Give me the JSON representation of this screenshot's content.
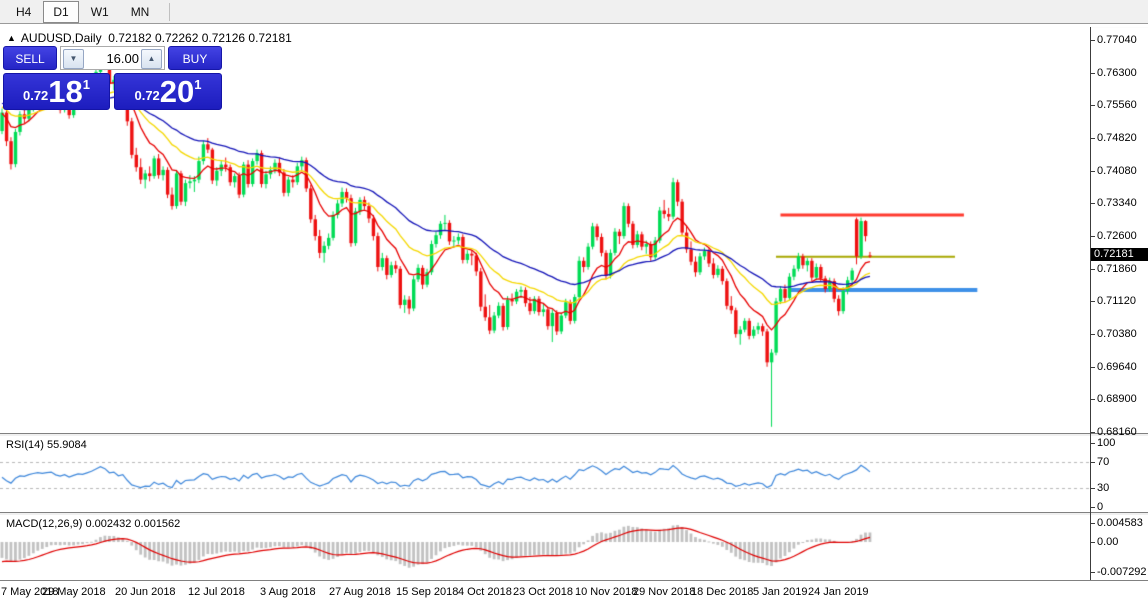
{
  "timeframe_tabs": [
    {
      "label": "H4",
      "active": false
    },
    {
      "label": "D1",
      "active": true
    },
    {
      "label": "W1",
      "active": false
    },
    {
      "label": "MN",
      "active": false
    }
  ],
  "header": {
    "arrow": "▲",
    "symbol_label": "AUDUSD,Daily",
    "ohlc": "0.72182 0.72262 0.72126 0.72181"
  },
  "one_click": {
    "sell_label": "SELL",
    "buy_label": "BUY",
    "volume": "16.00",
    "spin_down": "▼",
    "spin_up": "▲",
    "bid": {
      "prefix": "0.72",
      "big": "18",
      "sup": "1"
    },
    "ask": {
      "prefix": "0.72",
      "big": "20",
      "sup": "1"
    }
  },
  "indicators": {
    "rsi": {
      "label": "RSI(14) 55.9084",
      "period": 14,
      "value": "55.9084",
      "color": "#3d87db",
      "level_labels": [
        "100",
        "70",
        "30",
        "0"
      ],
      "level_values": [
        100,
        70,
        30,
        0
      ],
      "dashed_levels": [
        70,
        30
      ],
      "seed_gain": 0.00155,
      "seed_loss": 0.00215
    },
    "macd": {
      "label": "MACD(12,26,9) 0.002432 0.001562",
      "fast": 12,
      "slow": 26,
      "signal": 9,
      "main_value": "0.002432",
      "signal_value": "0.001562",
      "histogram_color": "#c2c2c2",
      "signal_color": "#e00000",
      "scale_labels": [
        "0.004583",
        "0.00",
        "-0.007292"
      ],
      "scale_values": [
        0.004583,
        0.0,
        -0.007292
      ],
      "seed_fast_offset": 0.0018,
      "seed_slow_offset": 0.0058,
      "seed_signal": -0.005
    }
  },
  "chart_data": {
    "type": "candlestick",
    "symbol": "AUDUSD",
    "timeframe": "Daily",
    "title": "AUDUSD,Daily 0.72182 0.72262 0.72126 0.72181",
    "y_axis_labels": [
      "0.77040",
      "0.76300",
      "0.75560",
      "0.74820",
      "0.74080",
      "0.73340",
      "0.72600",
      "0.71860",
      "0.71120",
      "0.70380",
      "0.69640",
      "0.68900",
      "0.68160"
    ],
    "price_tag": "0.72181",
    "ylim": [
      0.6816,
      0.7704
    ],
    "x_labels": [
      {
        "text": "7 May 2018",
        "idx": 0
      },
      {
        "text": "29 May 2018",
        "idx": 16
      },
      {
        "text": "20 Jun 2018",
        "idx": 32
      },
      {
        "text": "12 Jul 2018",
        "idx": 48
      },
      {
        "text": "3 Aug 2018",
        "idx": 64
      },
      {
        "text": "27 Aug 2018",
        "idx": 80
      },
      {
        "text": "15 Sep 2018",
        "idx": 95
      },
      {
        "text": "4 Oct 2018",
        "idx": 108
      },
      {
        "text": "23 Oct 2018",
        "idx": 121
      },
      {
        "text": "10 Nov 2018",
        "idx": 135
      },
      {
        "text": "29 Nov 2018",
        "idx": 148
      },
      {
        "text": "18 Dec 2018",
        "idx": 161
      },
      {
        "text": "5 Jan 2019",
        "idx": 174
      },
      {
        "text": "24 Jan 2019",
        "idx": 187
      }
    ],
    "colors": {
      "bull": "#00dc55",
      "bear": "#ee1111"
    },
    "hlines": [
      {
        "name": "resistance-line",
        "color": "#ff3b30",
        "width": 3,
        "price": 0.731,
        "from": 174,
        "to": 215
      },
      {
        "name": "mid-line",
        "color": "#a8a800",
        "width": 2,
        "price": 0.7215,
        "from": 173,
        "to": 213
      },
      {
        "name": "support-line",
        "color": "#3e90e8",
        "width": 4,
        "price": 0.714,
        "from": 176,
        "to": 218
      }
    ],
    "moving_averages": [
      {
        "name": "fast-ma",
        "color": "#e80000",
        "period": 10,
        "seed": 0.754
      },
      {
        "name": "medium-ma",
        "color": "#f5d800",
        "period": 22,
        "seed": 0.7556
      },
      {
        "name": "slow-ma",
        "color": "#1414b8",
        "period": 42,
        "seed": 0.7564
      }
    ],
    "candles": [
      [
        0.75,
        0.7551,
        0.7493,
        0.7542
      ],
      [
        0.7542,
        0.7549,
        0.7466,
        0.7477
      ],
      [
        0.7477,
        0.7486,
        0.7413,
        0.7425
      ],
      [
        0.7425,
        0.7505,
        0.7418,
        0.7498
      ],
      [
        0.7498,
        0.7545,
        0.749,
        0.7538
      ],
      [
        0.7538,
        0.756,
        0.7518,
        0.7528
      ],
      [
        0.7528,
        0.7566,
        0.7522,
        0.7558
      ],
      [
        0.7558,
        0.7582,
        0.7544,
        0.7576
      ],
      [
        0.7576,
        0.7598,
        0.756,
        0.759
      ],
      [
        0.759,
        0.7606,
        0.7572,
        0.758
      ],
      [
        0.758,
        0.7598,
        0.7568,
        0.7592
      ],
      [
        0.7592,
        0.7606,
        0.758,
        0.76
      ],
      [
        0.76,
        0.7604,
        0.7556,
        0.7565
      ],
      [
        0.7565,
        0.7578,
        0.754,
        0.7548
      ],
      [
        0.7548,
        0.7572,
        0.7542,
        0.7566
      ],
      [
        0.7566,
        0.7574,
        0.7528,
        0.7536
      ],
      [
        0.7536,
        0.7562,
        0.753,
        0.7556
      ],
      [
        0.7556,
        0.758,
        0.7548,
        0.7574
      ],
      [
        0.7574,
        0.759,
        0.756,
        0.7568
      ],
      [
        0.7568,
        0.7592,
        0.756,
        0.7586
      ],
      [
        0.7586,
        0.761,
        0.7578,
        0.7604
      ],
      [
        0.7604,
        0.764,
        0.7596,
        0.7634
      ],
      [
        0.7634,
        0.7677,
        0.7626,
        0.7665
      ],
      [
        0.7665,
        0.7672,
        0.7638,
        0.7648
      ],
      [
        0.7648,
        0.766,
        0.7598,
        0.7608
      ],
      [
        0.7608,
        0.7625,
        0.7592,
        0.7616
      ],
      [
        0.7616,
        0.7622,
        0.757,
        0.7578
      ],
      [
        0.7578,
        0.7598,
        0.7565,
        0.759
      ],
      [
        0.759,
        0.7596,
        0.7512,
        0.7522
      ],
      [
        0.7522,
        0.753,
        0.7438,
        0.7446
      ],
      [
        0.7446,
        0.7462,
        0.7408,
        0.7418
      ],
      [
        0.7418,
        0.7438,
        0.738,
        0.739
      ],
      [
        0.739,
        0.7412,
        0.737,
        0.7404
      ],
      [
        0.7404,
        0.742,
        0.7386,
        0.7398
      ],
      [
        0.7398,
        0.7444,
        0.7392,
        0.7438
      ],
      [
        0.7438,
        0.7448,
        0.7392,
        0.74
      ],
      [
        0.74,
        0.742,
        0.7388,
        0.7412
      ],
      [
        0.7412,
        0.7418,
        0.7348,
        0.7356
      ],
      [
        0.7356,
        0.7372,
        0.7322,
        0.733
      ],
      [
        0.733,
        0.7412,
        0.7324,
        0.7404
      ],
      [
        0.7404,
        0.741,
        0.7332,
        0.734
      ],
      [
        0.734,
        0.739,
        0.733,
        0.7382
      ],
      [
        0.7382,
        0.74,
        0.737,
        0.7386
      ],
      [
        0.7386,
        0.7398,
        0.7362,
        0.739
      ],
      [
        0.739,
        0.7442,
        0.7382,
        0.7432
      ],
      [
        0.7432,
        0.7478,
        0.7424,
        0.747
      ],
      [
        0.747,
        0.7484,
        0.745,
        0.7458
      ],
      [
        0.7458,
        0.7462,
        0.738,
        0.7388
      ],
      [
        0.7388,
        0.7418,
        0.7376,
        0.741
      ],
      [
        0.741,
        0.7432,
        0.7398,
        0.7424
      ],
      [
        0.7424,
        0.744,
        0.7408,
        0.7418
      ],
      [
        0.7418,
        0.7424,
        0.7376,
        0.7384
      ],
      [
        0.7384,
        0.7404,
        0.7372,
        0.7398
      ],
      [
        0.7398,
        0.7406,
        0.7348,
        0.7356
      ],
      [
        0.7356,
        0.743,
        0.735,
        0.7424
      ],
      [
        0.7424,
        0.7434,
        0.7372,
        0.738
      ],
      [
        0.738,
        0.7438,
        0.7374,
        0.7432
      ],
      [
        0.7432,
        0.7458,
        0.7424,
        0.745
      ],
      [
        0.745,
        0.7456,
        0.7372,
        0.738
      ],
      [
        0.738,
        0.741,
        0.737,
        0.7402
      ],
      [
        0.7402,
        0.742,
        0.7392,
        0.7412
      ],
      [
        0.7412,
        0.7436,
        0.7404,
        0.7428
      ],
      [
        0.7428,
        0.744,
        0.7398,
        0.7406
      ],
      [
        0.7406,
        0.7414,
        0.7352,
        0.736
      ],
      [
        0.736,
        0.7396,
        0.7352,
        0.739
      ],
      [
        0.739,
        0.74,
        0.7372,
        0.7384
      ],
      [
        0.7384,
        0.7428,
        0.7378,
        0.742
      ],
      [
        0.742,
        0.7442,
        0.741,
        0.7434
      ],
      [
        0.7434,
        0.744,
        0.7362,
        0.737
      ],
      [
        0.737,
        0.7378,
        0.7292,
        0.73
      ],
      [
        0.73,
        0.731,
        0.7252,
        0.7262
      ],
      [
        0.7262,
        0.7276,
        0.7212,
        0.7224
      ],
      [
        0.7224,
        0.725,
        0.7202,
        0.724
      ],
      [
        0.724,
        0.7268,
        0.7232,
        0.7258
      ],
      [
        0.7258,
        0.7318,
        0.7252,
        0.731
      ],
      [
        0.731,
        0.7344,
        0.7302,
        0.7336
      ],
      [
        0.7336,
        0.7372,
        0.7328,
        0.7362
      ],
      [
        0.7362,
        0.737,
        0.7338,
        0.7348
      ],
      [
        0.7348,
        0.7356,
        0.7238,
        0.7246
      ],
      [
        0.7246,
        0.7326,
        0.724,
        0.7318
      ],
      [
        0.7318,
        0.735,
        0.731,
        0.7344
      ],
      [
        0.7344,
        0.7352,
        0.7322,
        0.733
      ],
      [
        0.733,
        0.7338,
        0.7292,
        0.7302
      ],
      [
        0.7302,
        0.731,
        0.7252,
        0.7262
      ],
      [
        0.7262,
        0.727,
        0.7182,
        0.7192
      ],
      [
        0.7192,
        0.7224,
        0.7184,
        0.7212
      ],
      [
        0.7212,
        0.7218,
        0.7164,
        0.7174
      ],
      [
        0.7174,
        0.7204,
        0.7168,
        0.7196
      ],
      [
        0.7196,
        0.7206,
        0.7178,
        0.7188
      ],
      [
        0.7188,
        0.7194,
        0.7098,
        0.7106
      ],
      [
        0.7106,
        0.7128,
        0.7088,
        0.7118
      ],
      [
        0.7118,
        0.7126,
        0.7085,
        0.7098
      ],
      [
        0.7098,
        0.7172,
        0.7092,
        0.7164
      ],
      [
        0.7164,
        0.7198,
        0.7158,
        0.719
      ],
      [
        0.719,
        0.7196,
        0.7142,
        0.7152
      ],
      [
        0.7152,
        0.7188,
        0.7146,
        0.718
      ],
      [
        0.718,
        0.7252,
        0.7174,
        0.7244
      ],
      [
        0.7244,
        0.7272,
        0.7236,
        0.7264
      ],
      [
        0.7264,
        0.7296,
        0.7256,
        0.729
      ],
      [
        0.729,
        0.731,
        0.7276,
        0.7292
      ],
      [
        0.7292,
        0.7298,
        0.7242,
        0.725
      ],
      [
        0.725,
        0.7262,
        0.7238,
        0.7252
      ],
      [
        0.7252,
        0.7268,
        0.7244,
        0.726
      ],
      [
        0.726,
        0.7266,
        0.72,
        0.7208
      ],
      [
        0.7208,
        0.723,
        0.72,
        0.7222
      ],
      [
        0.7222,
        0.723,
        0.7196,
        0.7218
      ],
      [
        0.7218,
        0.7224,
        0.7172,
        0.7182
      ],
      [
        0.7182,
        0.719,
        0.7092,
        0.7102
      ],
      [
        0.7102,
        0.713,
        0.707,
        0.7078
      ],
      [
        0.7078,
        0.7106,
        0.704,
        0.7048
      ],
      [
        0.7048,
        0.709,
        0.7042,
        0.7082
      ],
      [
        0.7082,
        0.7112,
        0.7076,
        0.7104
      ],
      [
        0.7104,
        0.711,
        0.7048,
        0.7056
      ],
      [
        0.7056,
        0.7126,
        0.705,
        0.7118
      ],
      [
        0.7118,
        0.7132,
        0.7104,
        0.7114
      ],
      [
        0.7114,
        0.7142,
        0.7108,
        0.7136
      ],
      [
        0.7136,
        0.7148,
        0.7122,
        0.714
      ],
      [
        0.714,
        0.7146,
        0.7102,
        0.711
      ],
      [
        0.711,
        0.7124,
        0.7084,
        0.7092
      ],
      [
        0.7092,
        0.7126,
        0.7086,
        0.712
      ],
      [
        0.712,
        0.7126,
        0.7082,
        0.709
      ],
      [
        0.709,
        0.7108,
        0.708,
        0.7096
      ],
      [
        0.7096,
        0.7102,
        0.705,
        0.7058
      ],
      [
        0.7058,
        0.7096,
        0.7022,
        0.7088
      ],
      [
        0.7088,
        0.7094,
        0.7038,
        0.7046
      ],
      [
        0.7046,
        0.7088,
        0.704,
        0.7082
      ],
      [
        0.7082,
        0.712,
        0.7076,
        0.7112
      ],
      [
        0.7112,
        0.7118,
        0.7062,
        0.707
      ],
      [
        0.707,
        0.713,
        0.7064,
        0.7124
      ],
      [
        0.7124,
        0.7216,
        0.7118,
        0.7206
      ],
      [
        0.7206,
        0.7214,
        0.718,
        0.7192
      ],
      [
        0.7192,
        0.7246,
        0.7186,
        0.7238
      ],
      [
        0.7238,
        0.7292,
        0.7232,
        0.7284
      ],
      [
        0.7284,
        0.729,
        0.7252,
        0.726
      ],
      [
        0.726,
        0.7268,
        0.7216,
        0.7224
      ],
      [
        0.7224,
        0.723,
        0.7164,
        0.7172
      ],
      [
        0.7172,
        0.7232,
        0.7166,
        0.7224
      ],
      [
        0.7224,
        0.728,
        0.7218,
        0.7272
      ],
      [
        0.7272,
        0.7278,
        0.7244,
        0.7262
      ],
      [
        0.7262,
        0.7338,
        0.7256,
        0.733
      ],
      [
        0.733,
        0.7336,
        0.7282,
        0.729
      ],
      [
        0.729,
        0.7296,
        0.7234,
        0.7242
      ],
      [
        0.7242,
        0.7274,
        0.7236,
        0.7266
      ],
      [
        0.7266,
        0.7272,
        0.723,
        0.7238
      ],
      [
        0.7238,
        0.7252,
        0.7222,
        0.7244
      ],
      [
        0.7244,
        0.725,
        0.7206,
        0.7214
      ],
      [
        0.7214,
        0.726,
        0.7208,
        0.7252
      ],
      [
        0.7252,
        0.7328,
        0.7246,
        0.732
      ],
      [
        0.732,
        0.7344,
        0.7302,
        0.7312
      ],
      [
        0.7312,
        0.7326,
        0.7296,
        0.7306
      ],
      [
        0.7306,
        0.7394,
        0.73,
        0.7384
      ],
      [
        0.7384,
        0.739,
        0.733,
        0.734
      ],
      [
        0.734,
        0.7346,
        0.7262,
        0.727
      ],
      [
        0.727,
        0.7286,
        0.7224,
        0.7232
      ],
      [
        0.7232,
        0.725,
        0.7196,
        0.7204
      ],
      [
        0.7204,
        0.7216,
        0.717,
        0.718
      ],
      [
        0.718,
        0.7224,
        0.7174,
        0.7216
      ],
      [
        0.7216,
        0.7236,
        0.7208,
        0.7228
      ],
      [
        0.7228,
        0.7234,
        0.7192,
        0.72
      ],
      [
        0.72,
        0.7212,
        0.7166,
        0.7174
      ],
      [
        0.7174,
        0.7196,
        0.7168,
        0.7188
      ],
      [
        0.7188,
        0.7194,
        0.7152,
        0.716
      ],
      [
        0.716,
        0.7166,
        0.7096,
        0.7104
      ],
      [
        0.7104,
        0.7126,
        0.7086,
        0.7094
      ],
      [
        0.7094,
        0.71,
        0.7032,
        0.704
      ],
      [
        0.704,
        0.7058,
        0.7016,
        0.705
      ],
      [
        0.705,
        0.7076,
        0.7044,
        0.707
      ],
      [
        0.707,
        0.7076,
        0.7028,
        0.7036
      ],
      [
        0.7036,
        0.7058,
        0.703,
        0.705
      ],
      [
        0.705,
        0.7066,
        0.704,
        0.7058
      ],
      [
        0.7058,
        0.7064,
        0.7036,
        0.7046
      ],
      [
        0.7046,
        0.7052,
        0.6966,
        0.6976
      ],
      [
        0.6976,
        0.7006,
        0.683,
        0.6998
      ],
      [
        0.6998,
        0.7122,
        0.6992,
        0.7114
      ],
      [
        0.7114,
        0.7148,
        0.7108,
        0.7142
      ],
      [
        0.7142,
        0.7152,
        0.7112,
        0.7122
      ],
      [
        0.7122,
        0.7178,
        0.7116,
        0.717
      ],
      [
        0.717,
        0.7196,
        0.7162,
        0.7188
      ],
      [
        0.7188,
        0.7224,
        0.7182,
        0.7216
      ],
      [
        0.7216,
        0.7222,
        0.7188,
        0.7196
      ],
      [
        0.7196,
        0.7212,
        0.7182,
        0.7206
      ],
      [
        0.7206,
        0.7212,
        0.716,
        0.7168
      ],
      [
        0.7168,
        0.72,
        0.7162,
        0.7192
      ],
      [
        0.7192,
        0.7198,
        0.7158,
        0.7166
      ],
      [
        0.7166,
        0.7172,
        0.7134,
        0.7142
      ],
      [
        0.7142,
        0.7168,
        0.7136,
        0.716
      ],
      [
        0.716,
        0.7166,
        0.7112,
        0.712
      ],
      [
        0.712,
        0.7128,
        0.7082,
        0.7092
      ],
      [
        0.7092,
        0.7146,
        0.7086,
        0.7138
      ],
      [
        0.7138,
        0.717,
        0.713,
        0.7162
      ],
      [
        0.7162,
        0.719,
        0.715,
        0.7184
      ],
      [
        0.73,
        0.7304,
        0.7198,
        0.7216
      ],
      [
        0.7216,
        0.7304,
        0.721,
        0.7296
      ],
      [
        0.7296,
        0.7298,
        0.725,
        0.7262
      ],
      [
        0.72182,
        0.72262,
        0.72126,
        0.72181
      ]
    ]
  }
}
